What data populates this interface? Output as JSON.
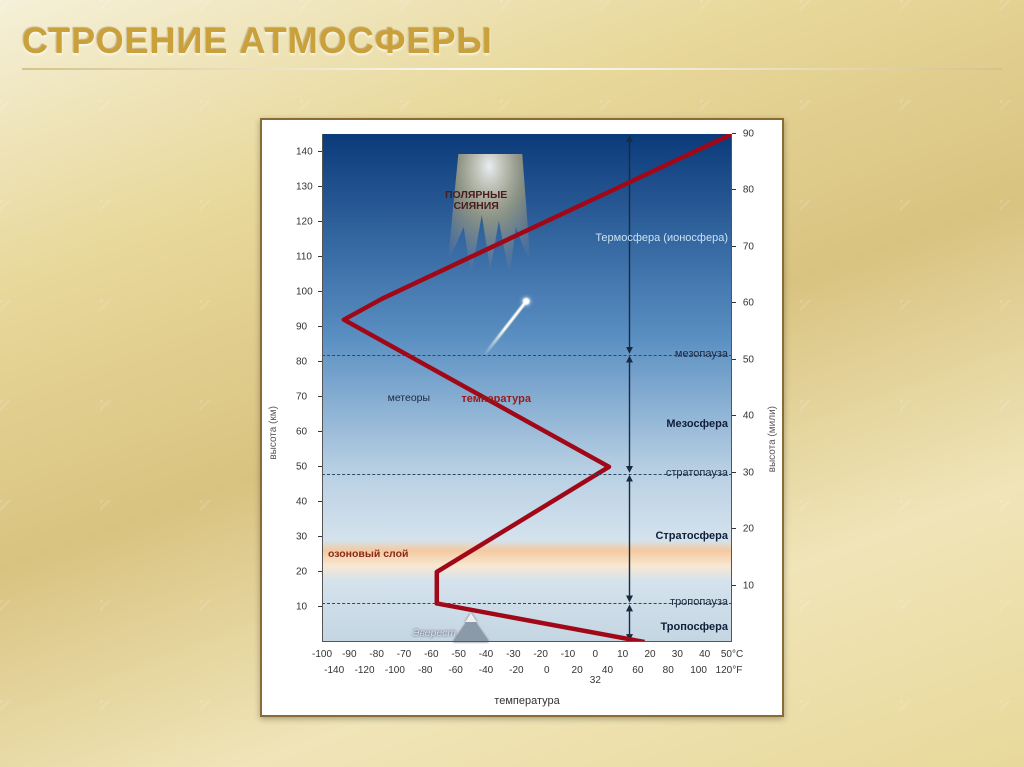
{
  "title": "Строение атмосферы",
  "axes": {
    "x_title": "температура",
    "left_y_title": "высота (км)",
    "right_y_title": "высота (мили)",
    "km_ticks": [
      10,
      20,
      30,
      40,
      50,
      60,
      70,
      80,
      90,
      100,
      110,
      120,
      130,
      140
    ],
    "miles_ticks": [
      10,
      20,
      30,
      40,
      50,
      60,
      70,
      80,
      90
    ],
    "c_ticks": [
      -100,
      -90,
      -80,
      -70,
      -60,
      -50,
      -40,
      -30,
      -20,
      -10,
      0,
      10,
      20,
      30,
      40,
      "50°C"
    ],
    "f_ticks": [
      -140,
      -120,
      -100,
      -80,
      -60,
      -40,
      -20,
      0,
      20,
      40,
      60,
      80,
      100,
      "120°F"
    ],
    "f_zero_label": "32",
    "c_min": -100,
    "c_max": 50,
    "km_min": 0,
    "km_max": 145,
    "mi_min": 0,
    "mi_max": 90
  },
  "annotations": {
    "aurora": "ПОЛЯРНЫЕ\nСИЯНИЯ",
    "meteors": "метеоры",
    "temperature": "температура",
    "ozone": "озоновый слой",
    "everest": "Эверест"
  },
  "layers": [
    {
      "name": "Тропосфера",
      "bold": true,
      "km": 4
    },
    {
      "name": "тропопауза",
      "bold": false,
      "km": 11,
      "boundary": true
    },
    {
      "name": "Стратосфера",
      "bold": true,
      "km": 30
    },
    {
      "name": "стратопауза",
      "bold": false,
      "km": 48,
      "boundary": true
    },
    {
      "name": "Мезосфера",
      "bold": true,
      "km": 62
    },
    {
      "name": "мезопауза",
      "bold": false,
      "km": 82,
      "boundary": true
    },
    {
      "name": "Термосфера (ионосфера)",
      "bold": false,
      "km": 115,
      "color": "#c9e2f5"
    }
  ],
  "temp_profile": [
    {
      "c": 18,
      "km": 0
    },
    {
      "c": -58,
      "km": 11
    },
    {
      "c": -58,
      "km": 20
    },
    {
      "c": 5,
      "km": 50
    },
    {
      "c": -92,
      "km": 92
    },
    {
      "c": -78,
      "km": 98
    },
    {
      "c": 50,
      "km": 145
    }
  ],
  "sky_gradient": [
    {
      "stop": 0,
      "color": "#0b3a7a"
    },
    {
      "stop": 40,
      "color": "#5a8fc2"
    },
    {
      "stop": 66,
      "color": "#b7cfe3"
    },
    {
      "stop": 80,
      "color": "#d4e2ed"
    },
    {
      "stop": 82,
      "color": "#f4c9a0"
    },
    {
      "stop": 85,
      "color": "#f8e8d2"
    },
    {
      "stop": 88,
      "color": "#d4e2ed"
    },
    {
      "stop": 100,
      "color": "#c4d6e2"
    }
  ],
  "aurora_pos": {
    "left_pct": 28,
    "top_pct": 4,
    "w_pct": 26,
    "h_pct": 24
  },
  "ozone_km": 25,
  "temp_line_color": "#a00818",
  "temp_line_width": 4.5
}
